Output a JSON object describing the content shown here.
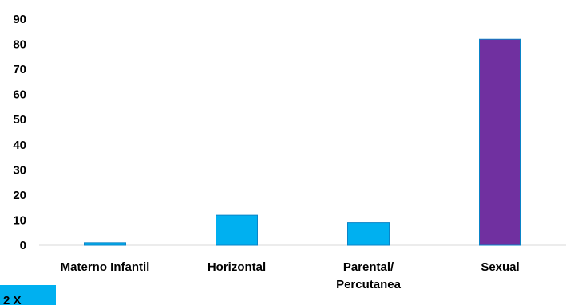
{
  "chart_data": {
    "type": "bar",
    "title": "",
    "xlabel": "",
    "ylabel": "",
    "categories": [
      "Materno Infantil",
      "Horizontal",
      "Parental/\nPercutanea",
      "Sexual"
    ],
    "values": [
      1,
      12,
      9,
      82
    ],
    "bar_colors": [
      "#00b0f0",
      "#00b0f0",
      "#00b0f0",
      "#7030a0"
    ],
    "ylim": [
      0,
      90
    ],
    "yticks": [
      0,
      10,
      20,
      30,
      40,
      50,
      60,
      70,
      80,
      90
    ],
    "grid": false,
    "legend": "none"
  },
  "corner_tab": {
    "text": "2 X",
    "color": "#00b0f0"
  }
}
